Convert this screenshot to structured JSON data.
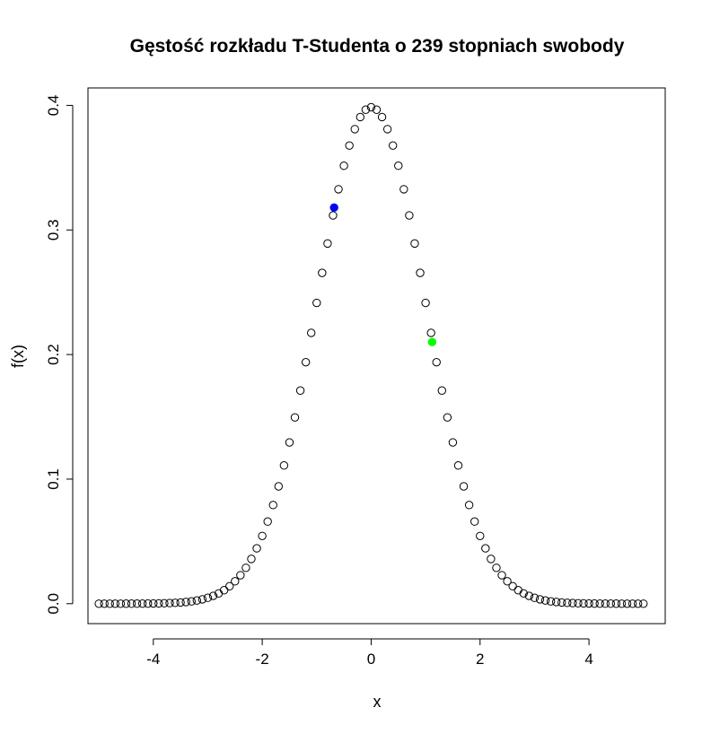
{
  "chart_data": {
    "type": "scatter",
    "title": "Gęstość rozkładu T-Studenta o 239 stopniach swobody",
    "xlabel": "x",
    "ylabel": "f(x)",
    "xlim": [
      -5.2,
      5.4
    ],
    "ylim": [
      -0.016,
      0.414
    ],
    "xticks": [
      -4,
      -2,
      0,
      2,
      4
    ],
    "yticks": [
      0.0,
      0.1,
      0.2,
      0.3,
      0.4
    ],
    "xtick_labels": [
      "-4",
      "-2",
      "0",
      "2",
      "4"
    ],
    "ytick_labels": [
      "0.0",
      "0.1",
      "0.2",
      "0.3",
      "0.4"
    ],
    "grid": false,
    "legend": "none",
    "degrees_of_freedom": 239,
    "x_start": -5,
    "x_end": 5,
    "x_step": 0.1,
    "series_style": {
      "marker": "open-circle",
      "color": "#000000"
    },
    "highlighted_points": [
      {
        "x": -0.68,
        "y": 0.318,
        "color": "#0000ff"
      },
      {
        "x": 1.12,
        "y": 0.21,
        "color": "#00ff00"
      }
    ]
  }
}
